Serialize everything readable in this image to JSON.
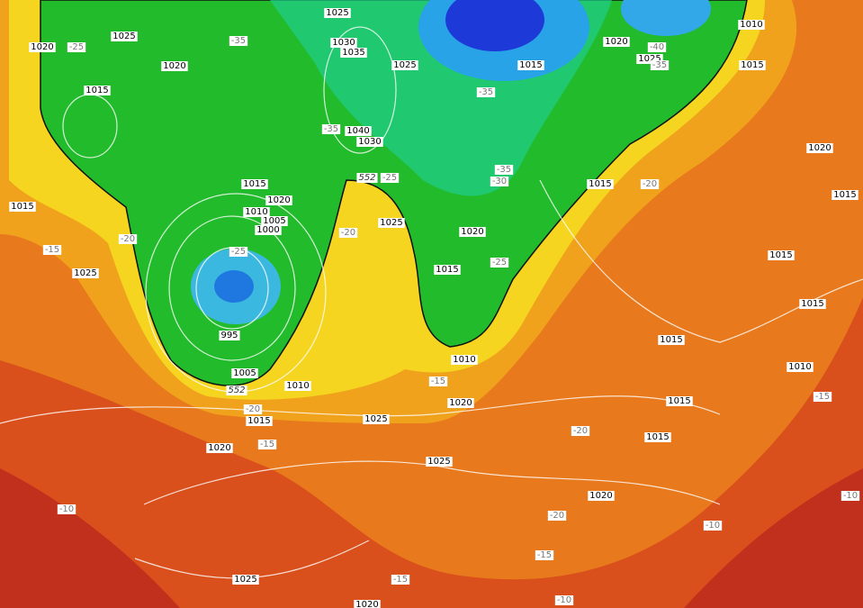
{
  "isobar_labels": [
    1025,
    1020,
    1025,
    1020,
    1015,
    1030,
    1035,
    1025,
    1020,
    1025,
    1010,
    1015,
    1015,
    1040,
    1030,
    1020,
    1015,
    1020,
    1010,
    1005,
    1000,
    1015,
    1015,
    1015,
    1025,
    1020,
    1025,
    1015,
    1015,
    1015,
    995,
    1015,
    1010,
    1010,
    1005,
    1010,
    1020,
    1015,
    1025,
    1015,
    1020,
    1015,
    1025,
    1020,
    1025,
    1020
  ],
  "temperature_labels": [
    -25,
    -35,
    -35,
    -40,
    -35,
    -35,
    -25,
    -35,
    -30,
    -20,
    -20,
    -15,
    -20,
    -25,
    -25,
    -20,
    -15,
    -15,
    -15,
    -20,
    -10,
    -20,
    -10,
    -15,
    -15,
    -10,
    -10
  ],
  "height_labels": [
    552,
    552
  ]
}
